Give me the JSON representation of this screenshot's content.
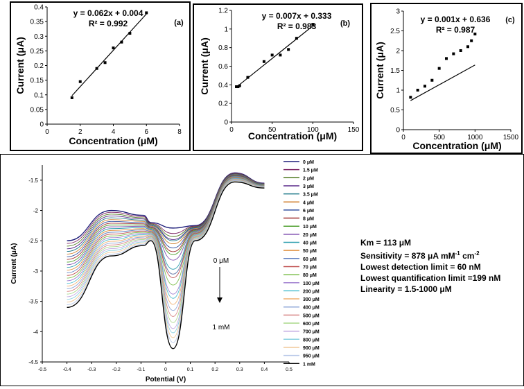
{
  "chart_data": [
    {
      "type": "scatter",
      "panel_label": "(a)",
      "equation": "y = 0.062x + 0.004",
      "r2": "R² = 0.992",
      "xlabel": "Concentration (μM)",
      "ylabel": "Current (μA)",
      "xlim": [
        0,
        8
      ],
      "ylim": [
        0,
        0.4
      ],
      "xticks": [
        0,
        2,
        4,
        6,
        8
      ],
      "yticks": [
        0,
        0.05,
        0.1,
        0.15,
        0.2,
        0.25,
        0.3,
        0.35,
        0.4
      ],
      "x": [
        1.5,
        2,
        3,
        3.5,
        4,
        4.5,
        5,
        6
      ],
      "y": [
        0.09,
        0.145,
        0.19,
        0.21,
        0.26,
        0.28,
        0.31,
        0.38
      ],
      "fit": {
        "slope": 0.062,
        "intercept": 0.004,
        "x_range": [
          1.5,
          6
        ]
      }
    },
    {
      "type": "scatter",
      "panel_label": "(b)",
      "equation": "y = 0.007x + 0.333",
      "r2": "R² = 0.983",
      "xlabel": "Concentration (μM)",
      "ylabel": "Current (μA)",
      "xlim": [
        0,
        150
      ],
      "ylim": [
        0,
        1.2
      ],
      "xticks": [
        0,
        50,
        100,
        150
      ],
      "yticks": [
        0,
        0.2,
        0.4,
        0.6,
        0.8,
        1,
        1.2
      ],
      "x": [
        6,
        8,
        10,
        20,
        40,
        50,
        60,
        70,
        80,
        100
      ],
      "y": [
        0.38,
        0.38,
        0.39,
        0.48,
        0.65,
        0.72,
        0.72,
        0.78,
        0.9,
        1.05
      ],
      "fit": {
        "slope": 0.007,
        "intercept": 0.333,
        "x_range": [
          6,
          100
        ]
      }
    },
    {
      "type": "scatter",
      "panel_label": "(c)",
      "equation": "y = 0.001x + 0.636",
      "r2": "R² = 0.987",
      "xlabel": "Concentration (μM)",
      "ylabel": "Current (μA)",
      "xlim": [
        0,
        1500
      ],
      "ylim": [
        0,
        3
      ],
      "xticks": [
        0,
        500,
        1000,
        1500
      ],
      "yticks": [
        0,
        0.5,
        1,
        1.5,
        2,
        2.5,
        3
      ],
      "x": [
        100,
        200,
        300,
        400,
        500,
        600,
        700,
        800,
        900,
        950,
        1000
      ],
      "y": [
        0.82,
        1.0,
        1.1,
        1.25,
        1.55,
        1.8,
        1.92,
        2.0,
        2.1,
        2.25,
        2.42
      ],
      "fit": {
        "slope": 0.001,
        "intercept": 0.636,
        "x_range": [
          100,
          1000
        ]
      }
    },
    {
      "type": "line",
      "xlabel": "Potential (V)",
      "ylabel": "Current (μA)",
      "xlim": [
        -0.5,
        0.5
      ],
      "ylim": [
        -4.5,
        -1.25
      ],
      "xticks": [
        -0.5,
        -0.4,
        -0.3,
        -0.2,
        -0.1,
        0,
        0.1,
        0.2,
        0.3,
        0.4,
        0.5
      ],
      "yticks": [
        -1.5,
        -2,
        -2.5,
        -3,
        -3.5,
        -4,
        -4.5
      ],
      "annotation_top": "0 μM",
      "annotation_bottom": "1 mM",
      "legend": [
        "0 μM",
        "1.5 μM",
        "2 μM",
        "3 μM",
        "3.5 μM",
        "4 μM",
        "6 μM",
        "8 μM",
        "10 μM",
        "20 μM",
        "40 μM",
        "50 μM",
        "60 μM",
        "70 μM",
        "80 μM",
        "100 μM",
        "200 μM",
        "300 μM",
        "400 μM",
        "500 μM",
        "600 μM",
        "700 μM",
        "800 μM",
        "900 μM",
        "950 μM",
        "1 mM"
      ],
      "series_colors": [
        "#1f1f7a",
        "#7a1f5f",
        "#4f7a1f",
        "#5a2a8a",
        "#1f7a8a",
        "#d08030",
        "#3050a0",
        "#a03030",
        "#50a030",
        "#8050b0",
        "#30a0b0",
        "#e09040",
        "#6080c0",
        "#c05050",
        "#80c050",
        "#a080d0",
        "#50c0d0",
        "#f0b070",
        "#90a8d8",
        "#d88888",
        "#a8d888",
        "#c0a8e0",
        "#88d0e0",
        "#f0c898",
        "#b8c8e8",
        "#000000"
      ],
      "peak_currents": [
        -2.29,
        -2.38,
        -2.43,
        -2.48,
        -2.5,
        -2.55,
        -2.62,
        -2.68,
        -2.73,
        -2.82,
        -2.97,
        -3.05,
        -3.05,
        -3.11,
        -3.23,
        -3.38,
        -3.45,
        -3.55,
        -3.65,
        -3.75,
        -3.85,
        -3.95,
        -4.02,
        -4.1,
        -4.18,
        -4.28
      ],
      "notes": [
        "Km = 113 μM",
        "Sensitivity = 878 μA mM⁻¹ cm⁻²",
        "Lowest detection limit = 60 nM",
        "Lowest quantification limit =199 nM",
        "Linearity = 1.5-1000 μM"
      ]
    }
  ]
}
